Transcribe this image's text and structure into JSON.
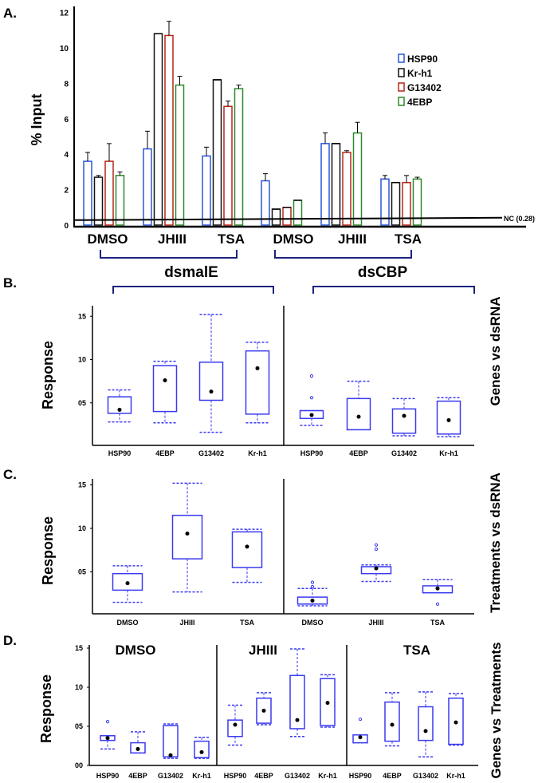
{
  "panel_labels": [
    "A.",
    "B.",
    "C.",
    "D."
  ],
  "colors": {
    "HSP90": "#2a56d8",
    "Kr-h1": "#111111",
    "G13402": "#b8261a",
    "4EBP": "#2e8a2e",
    "box": "#3a3af0",
    "bracket": "#1a237e"
  },
  "chart_data": [
    {
      "type": "bar",
      "ylabel": "% Input",
      "ylim": [
        0,
        12
      ],
      "yticks": [
        "0",
        "2",
        "4",
        "6",
        "8",
        "10",
        "12"
      ],
      "ytick_values": [
        0,
        2,
        4,
        6,
        8,
        10,
        12
      ],
      "legend": [
        "HSP90",
        "Kr-h1",
        "G13402",
        "4EBP"
      ],
      "legend_position": "top-right",
      "reference_line": {
        "label": "NC (0.28)",
        "value": 0.28
      },
      "categories": [
        "DMSO",
        "JHIII",
        "TSA",
        "DMSO",
        "JHIII",
        "TSA"
      ],
      "groups": [
        {
          "label": "dsmalE",
          "categories": [
            0,
            1,
            2
          ]
        },
        {
          "label": "dsCBP",
          "categories": [
            3,
            4,
            5
          ]
        }
      ],
      "series": [
        {
          "name": "HSP90",
          "values": [
            3.6,
            4.3,
            3.9,
            2.5,
            4.6,
            2.6
          ],
          "error_top": [
            4.1,
            5.3,
            4.4,
            2.9,
            5.2,
            2.8
          ]
        },
        {
          "name": "Kr-h1",
          "values": [
            2.7,
            10.8,
            8.2,
            0.9,
            4.6,
            2.4
          ],
          "error_top": [
            2.8,
            10.8,
            8.2,
            0.9,
            4.6,
            2.4
          ]
        },
        {
          "name": "G13402",
          "values": [
            3.6,
            10.7,
            6.7,
            1.0,
            4.1,
            2.4
          ],
          "error_top": [
            4.6,
            11.5,
            7.0,
            1.0,
            4.2,
            2.8
          ]
        },
        {
          "name": "4EBP",
          "values": [
            2.8,
            7.9,
            7.7,
            1.4,
            5.2,
            2.6
          ],
          "error_top": [
            3.0,
            8.4,
            7.9,
            1.4,
            5.8,
            2.7
          ]
        }
      ]
    },
    {
      "type": "box",
      "ylabel": "Response",
      "side_title": "Genes vs dsRNA",
      "yticks": [
        "05",
        "10",
        "15"
      ],
      "ytick_values": [
        5,
        10,
        15
      ],
      "panels": [
        {
          "title": "",
          "boxes": [
            {
              "label": "HSP90",
              "whisker_low": 2.8,
              "q1": 3.8,
              "q3": 5.7,
              "whisker_high": 6.5,
              "mean": 4.2,
              "outliers": []
            },
            {
              "label": "4EBP",
              "whisker_low": 2.7,
              "q1": 4.0,
              "q3": 9.3,
              "whisker_high": 9.8,
              "mean": 7.6,
              "outliers": []
            },
            {
              "label": "G13402",
              "whisker_low": 1.6,
              "q1": 5.3,
              "q3": 9.7,
              "whisker_high": 15.2,
              "mean": 6.3,
              "outliers": []
            },
            {
              "label": "Kr-h1",
              "whisker_low": 2.7,
              "q1": 3.7,
              "q3": 11.0,
              "whisker_high": 12.0,
              "mean": 9.0,
              "outliers": []
            }
          ]
        },
        {
          "title": "",
          "boxes": [
            {
              "label": "HSP90",
              "whisker_low": 2.4,
              "q1": 3.2,
              "q3": 4.1,
              "whisker_high": 4.1,
              "mean": 3.6,
              "outliers": [
                5.6,
                8.1
              ]
            },
            {
              "label": "4EBP",
              "whisker_low": 1.9,
              "q1": 1.9,
              "q3": 5.5,
              "whisker_high": 7.5,
              "mean": 3.4,
              "outliers": []
            },
            {
              "label": "G13402",
              "whisker_low": 1.2,
              "q1": 1.5,
              "q3": 4.3,
              "whisker_high": 5.5,
              "mean": 3.5,
              "outliers": []
            },
            {
              "label": "Kr-h1",
              "whisker_low": 1.1,
              "q1": 1.4,
              "q3": 5.2,
              "whisker_high": 5.6,
              "mean": 3.0,
              "outliers": []
            }
          ]
        }
      ]
    },
    {
      "type": "box",
      "ylabel": "Response",
      "side_title": "Treatments  vs  dsRNA",
      "yticks": [
        "05",
        "10",
        "15"
      ],
      "ytick_values": [
        5,
        10,
        15
      ],
      "panels": [
        {
          "title": "",
          "boxes": [
            {
              "label": "DMSO",
              "whisker_low": 1.5,
              "q1": 2.9,
              "q3": 4.8,
              "whisker_high": 5.7,
              "mean": 3.7,
              "outliers": []
            },
            {
              "label": "JHIII",
              "whisker_low": 2.7,
              "q1": 6.5,
              "q3": 11.5,
              "whisker_high": 15.2,
              "mean": 9.4,
              "outliers": []
            },
            {
              "label": "TSA",
              "whisker_low": 3.8,
              "q1": 5.5,
              "q3": 9.6,
              "whisker_high": 9.9,
              "mean": 7.9,
              "outliers": []
            }
          ]
        },
        {
          "title": "",
          "boxes": [
            {
              "label": "DMSO",
              "whisker_low": 1.1,
              "q1": 1.3,
              "q3": 2.1,
              "whisker_high": 3.1,
              "mean": 1.7,
              "outliers": [
                3.3,
                3.8
              ]
            },
            {
              "label": "JHIII",
              "whisker_low": 3.9,
              "q1": 4.8,
              "q3": 5.6,
              "whisker_high": 5.8,
              "mean": 5.4,
              "outliers": [
                7.6,
                8.1
              ]
            },
            {
              "label": "TSA",
              "whisker_low": 2.6,
              "q1": 2.6,
              "q3": 3.4,
              "whisker_high": 4.1,
              "mean": 3.1,
              "outliers": [
                1.3
              ]
            }
          ]
        }
      ]
    },
    {
      "type": "box",
      "ylabel": "Response",
      "side_title": "Genes vs Treatments",
      "yticks": [
        "00",
        "05",
        "10",
        "15"
      ],
      "ytick_values": [
        0,
        5,
        10,
        15
      ],
      "panels": [
        {
          "title": "DMSO",
          "boxes": [
            {
              "label": "HSP90",
              "whisker_low": 2.1,
              "q1": 3.2,
              "q3": 3.8,
              "whisker_high": 3.8,
              "mean": 3.5,
              "outliers": [
                5.6
              ]
            },
            {
              "label": "4EBP",
              "whisker_low": 1.6,
              "q1": 1.6,
              "q3": 2.9,
              "whisker_high": 4.3,
              "mean": 2.1,
              "outliers": []
            },
            {
              "label": "G13402",
              "whisker_low": 0.9,
              "q1": 1.1,
              "q3": 5.1,
              "whisker_high": 5.3,
              "mean": 1.3,
              "outliers": []
            },
            {
              "label": "Kr-h1",
              "whisker_low": 0.9,
              "q1": 1.0,
              "q3": 3.1,
              "whisker_high": 3.6,
              "mean": 1.7,
              "outliers": []
            }
          ]
        },
        {
          "title": "JHIII",
          "boxes": [
            {
              "label": "HSP90",
              "whisker_low": 2.6,
              "q1": 3.7,
              "q3": 5.8,
              "whisker_high": 7.7,
              "mean": 5.2,
              "outliers": []
            },
            {
              "label": "4EBP",
              "whisker_low": 5.2,
              "q1": 5.4,
              "q3": 8.6,
              "whisker_high": 9.3,
              "mean": 7.0,
              "outliers": []
            },
            {
              "label": "G13402",
              "whisker_low": 3.7,
              "q1": 4.7,
              "q3": 11.5,
              "whisker_high": 14.9,
              "mean": 5.8,
              "outliers": []
            },
            {
              "label": "Kr-h1",
              "whisker_low": 4.9,
              "q1": 5.1,
              "q3": 11.1,
              "whisker_high": 11.6,
              "mean": 8.0,
              "outliers": []
            }
          ]
        },
        {
          "title": "TSA",
          "boxes": [
            {
              "label": "HSP90",
              "whisker_low": 2.9,
              "q1": 2.9,
              "q3": 3.9,
              "whisker_high": 3.9,
              "mean": 3.6,
              "outliers": [
                5.9
              ]
            },
            {
              "label": "4EBP",
              "whisker_low": 2.5,
              "q1": 3.1,
              "q3": 8.1,
              "whisker_high": 9.3,
              "mean": 5.2,
              "outliers": []
            },
            {
              "label": "G13402",
              "whisker_low": 1.1,
              "q1": 3.2,
              "q3": 7.5,
              "whisker_high": 9.4,
              "mean": 4.4,
              "outliers": []
            },
            {
              "label": "Kr-h1",
              "whisker_low": 2.6,
              "q1": 2.7,
              "q3": 8.6,
              "whisker_high": 9.2,
              "mean": 5.5,
              "outliers": []
            }
          ]
        }
      ]
    }
  ]
}
